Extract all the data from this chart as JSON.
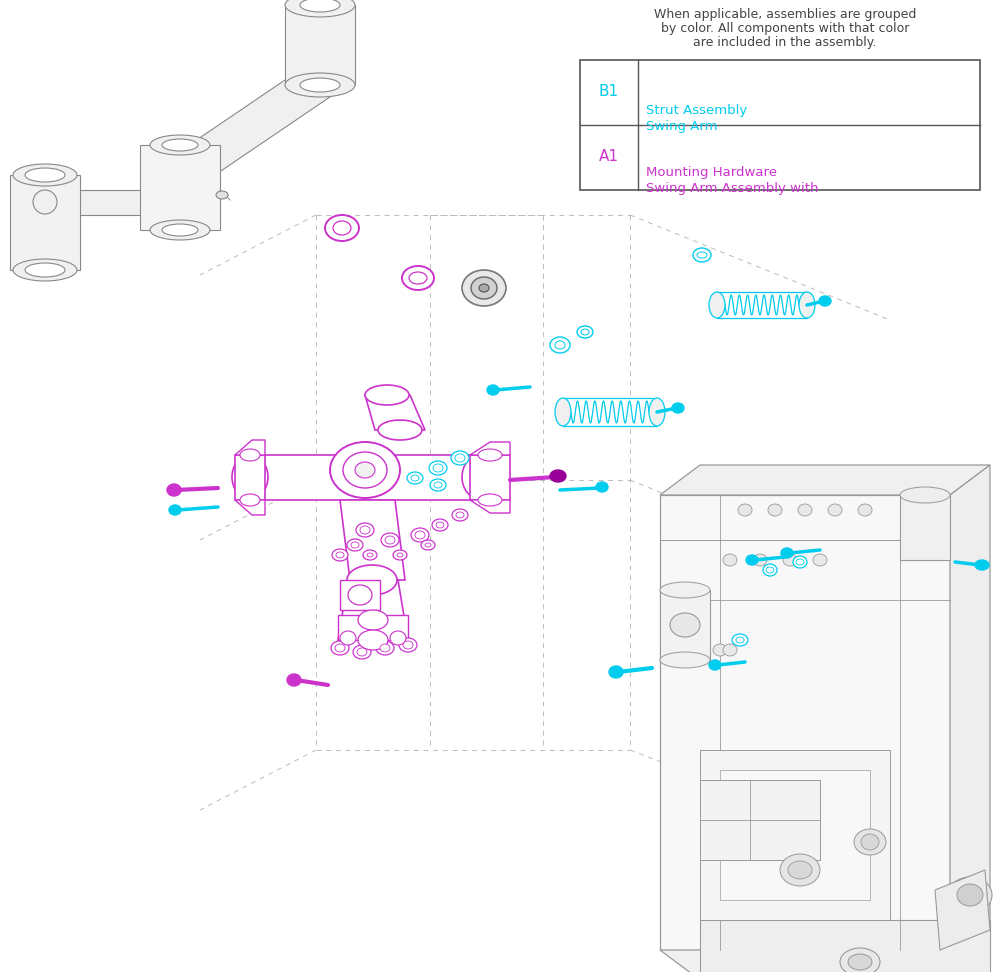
{
  "background_color": "#ffffff",
  "legend_text_line1": "When applicable, assemblies are grouped",
  "legend_text_line2": "by color. All components with that color",
  "legend_text_line3": "are included in the assembly.",
  "a1_code": "A1",
  "a1_desc_line1": "Swing Arm Assembly with",
  "a1_desc_line2": "Mounting Hardware",
  "b1_code": "B1",
  "b1_desc_line1": "Swing Arm",
  "b1_desc_line2": "Strut Assembly",
  "magenta": "#cc33cc",
  "cyan": "#00ccee",
  "gray": "#888888",
  "light_gray": "#bbbbbb",
  "dark_gray": "#555555",
  "frame_gray": "#999999",
  "figsize": [
    10.0,
    9.72
  ]
}
